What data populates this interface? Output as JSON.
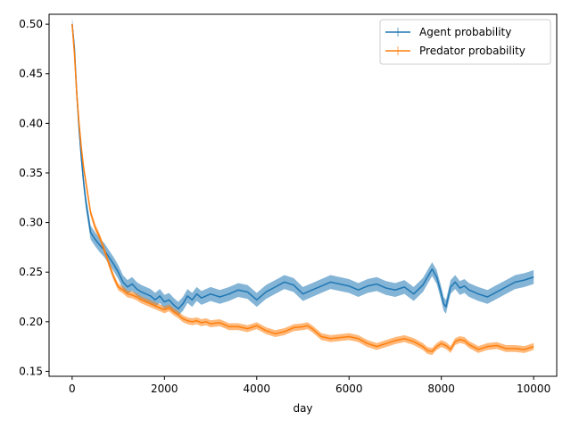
{
  "chart_data": {
    "type": "line",
    "title": "",
    "xlabel": "day",
    "ylabel": "",
    "xlim": [
      -500,
      10500
    ],
    "ylim": [
      0.145,
      0.51
    ],
    "xticks": [
      0,
      2000,
      4000,
      6000,
      8000,
      10000
    ],
    "xtick_labels": [
      "0",
      "2000",
      "4000",
      "6000",
      "8000",
      "10000"
    ],
    "yticks": [
      0.15,
      0.2,
      0.25,
      0.3,
      0.35,
      0.4,
      0.45,
      0.5
    ],
    "ytick_labels": [
      "0.15",
      "0.20",
      "0.25",
      "0.30",
      "0.35",
      "0.40",
      "0.45",
      "0.50"
    ],
    "grid": false,
    "legend_position": "top-right",
    "series": [
      {
        "name": "Agent probability",
        "color": "#1f77b4",
        "error_band": 0.007,
        "x": [
          0,
          50,
          100,
          150,
          200,
          250,
          300,
          350,
          400,
          500,
          600,
          700,
          800,
          900,
          1000,
          1100,
          1200,
          1300,
          1400,
          1500,
          1600,
          1700,
          1800,
          1900,
          2000,
          2100,
          2200,
          2300,
          2400,
          2500,
          2600,
          2700,
          2800,
          2900,
          3000,
          3200,
          3400,
          3600,
          3800,
          4000,
          4200,
          4400,
          4600,
          4800,
          5000,
          5200,
          5400,
          5600,
          5800,
          6000,
          6200,
          6400,
          6600,
          6800,
          7000,
          7200,
          7400,
          7600,
          7700,
          7800,
          7900,
          8000,
          8050,
          8100,
          8200,
          8300,
          8400,
          8500,
          8600,
          8800,
          9000,
          9200,
          9400,
          9600,
          9800,
          10000
        ],
        "y": [
          0.5,
          0.475,
          0.43,
          0.395,
          0.365,
          0.34,
          0.32,
          0.305,
          0.29,
          0.283,
          0.277,
          0.272,
          0.265,
          0.258,
          0.25,
          0.24,
          0.235,
          0.238,
          0.233,
          0.23,
          0.228,
          0.226,
          0.222,
          0.226,
          0.22,
          0.222,
          0.217,
          0.213,
          0.218,
          0.226,
          0.222,
          0.228,
          0.224,
          0.226,
          0.228,
          0.225,
          0.228,
          0.232,
          0.23,
          0.222,
          0.23,
          0.235,
          0.24,
          0.237,
          0.228,
          0.232,
          0.236,
          0.24,
          0.238,
          0.236,
          0.232,
          0.236,
          0.238,
          0.234,
          0.232,
          0.235,
          0.228,
          0.237,
          0.245,
          0.253,
          0.245,
          0.228,
          0.218,
          0.215,
          0.235,
          0.24,
          0.234,
          0.236,
          0.232,
          0.228,
          0.225,
          0.23,
          0.235,
          0.24,
          0.242,
          0.245
        ]
      },
      {
        "name": "Predator probability",
        "color": "#ff7f0e",
        "error_band": 0.0035,
        "x": [
          0,
          50,
          100,
          150,
          200,
          250,
          300,
          350,
          400,
          500,
          600,
          700,
          800,
          900,
          1000,
          1100,
          1200,
          1300,
          1400,
          1500,
          1600,
          1700,
          1800,
          1900,
          2000,
          2100,
          2200,
          2300,
          2400,
          2500,
          2600,
          2700,
          2800,
          2900,
          3000,
          3200,
          3400,
          3600,
          3800,
          4000,
          4200,
          4400,
          4600,
          4800,
          5000,
          5100,
          5200,
          5400,
          5600,
          5800,
          6000,
          6200,
          6400,
          6600,
          6800,
          7000,
          7200,
          7400,
          7600,
          7700,
          7800,
          7900,
          8000,
          8100,
          8200,
          8300,
          8400,
          8500,
          8600,
          8800,
          9000,
          9200,
          9400,
          9600,
          9800,
          10000
        ],
        "y": [
          0.5,
          0.47,
          0.43,
          0.4,
          0.375,
          0.355,
          0.34,
          0.325,
          0.31,
          0.295,
          0.285,
          0.272,
          0.258,
          0.245,
          0.235,
          0.232,
          0.228,
          0.227,
          0.225,
          0.222,
          0.22,
          0.218,
          0.216,
          0.214,
          0.212,
          0.214,
          0.21,
          0.207,
          0.203,
          0.201,
          0.2,
          0.201,
          0.199,
          0.2,
          0.198,
          0.199,
          0.195,
          0.195,
          0.193,
          0.196,
          0.191,
          0.188,
          0.19,
          0.194,
          0.195,
          0.196,
          0.193,
          0.185,
          0.183,
          0.184,
          0.185,
          0.183,
          0.178,
          0.175,
          0.178,
          0.181,
          0.183,
          0.18,
          0.175,
          0.171,
          0.17,
          0.175,
          0.178,
          0.176,
          0.172,
          0.18,
          0.182,
          0.181,
          0.177,
          0.172,
          0.175,
          0.176,
          0.173,
          0.173,
          0.172,
          0.175
        ]
      }
    ]
  }
}
